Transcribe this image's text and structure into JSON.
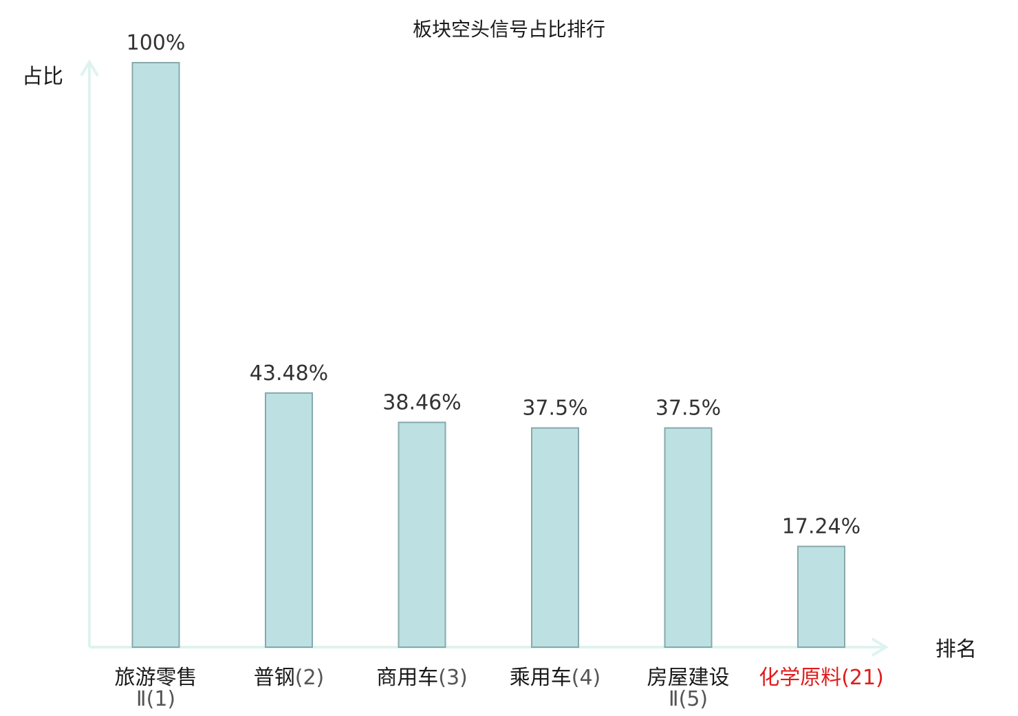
{
  "chart_data": {
    "type": "bar",
    "title": "板块空头信号占比排行",
    "ylabel": "占比",
    "xlabel": "排名",
    "ylim": [
      0,
      100
    ],
    "grid": false,
    "legend": "none",
    "categories": [
      {
        "name": "旅游零售",
        "name2": "Ⅱ",
        "rank": "(1)",
        "highlight": false
      },
      {
        "name": "普钢",
        "name2": "",
        "rank": "(2)",
        "highlight": false
      },
      {
        "name": "商用车",
        "name2": "",
        "rank": "(3)",
        "highlight": false
      },
      {
        "name": "乘用车",
        "name2": "",
        "rank": "(4)",
        "highlight": false
      },
      {
        "name": "房屋建设",
        "name2": "Ⅱ",
        "rank": "(5)",
        "highlight": false
      },
      {
        "name": "化学原料",
        "name2": "",
        "rank": "(21)",
        "highlight": true
      }
    ],
    "values": [
      100,
      43.48,
      38.46,
      37.5,
      37.5,
      17.24
    ],
    "value_labels": [
      "100%",
      "43.48%",
      "38.46%",
      "37.5%",
      "37.5%",
      "17.24%"
    ],
    "colors": {
      "bar_fill": "#bde1e3",
      "bar_stroke": "#86a9ab",
      "axis": "#dff2ef",
      "highlight": "#e01b1b"
    }
  }
}
